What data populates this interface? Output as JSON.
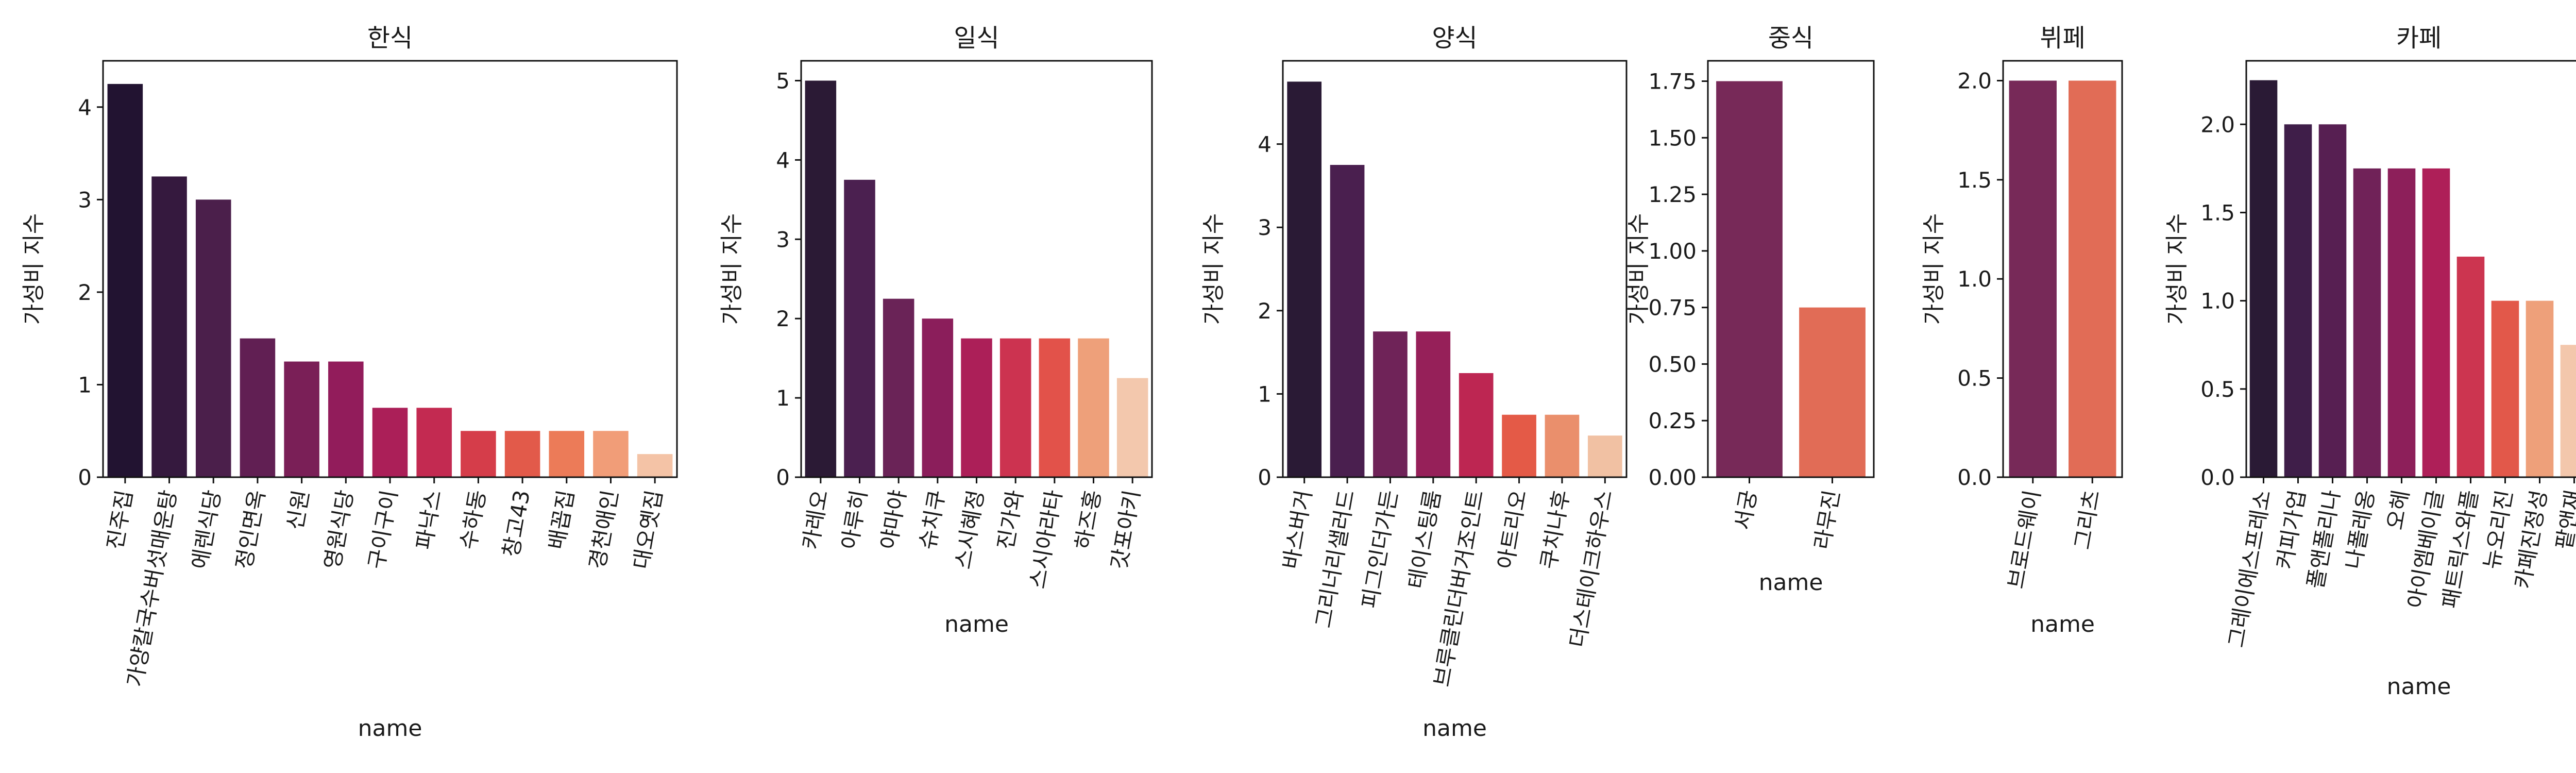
{
  "chart_data": [
    {
      "type": "bar",
      "title": "한식",
      "xlabel": "name",
      "ylabel": "가성비 지수",
      "categories": [
        "진주집",
        "가양칼국수버섯매운탕",
        "에렌식당",
        "정인면옥",
        "신원",
        "영원식당",
        "구이구이",
        "파낙스",
        "수하동",
        "창고43",
        "배꼽집",
        "경천애인",
        "대오옛집"
      ],
      "values": [
        4.25,
        3.25,
        3.0,
        1.5,
        1.25,
        1.25,
        0.75,
        0.75,
        0.5,
        0.5,
        0.5,
        0.5,
        0.25
      ],
      "ylim": [
        0,
        4.5
      ],
      "yticks": [
        0,
        1,
        2,
        3,
        4
      ],
      "ytick_labels": [
        "0",
        "1",
        "2",
        "3",
        "4"
      ],
      "colors": [
        "#221331",
        "#35193e",
        "#4b1f4b",
        "#611f53",
        "#7a1f57",
        "#921c5b",
        "#ab1f58",
        "#c32a51",
        "#d53d4a",
        "#e25a4a",
        "#ec7b58",
        "#f19d78",
        "#f4c3a6"
      ]
    },
    {
      "type": "bar",
      "title": "일식",
      "xlabel": "name",
      "ylabel": "가성비 지수",
      "categories": [
        "카레오",
        "아루히",
        "야마야",
        "슈치쿠",
        "스시혜정",
        "진가와",
        "스시아라타",
        "하즈홍",
        "갓포아키"
      ],
      "values": [
        5.0,
        3.75,
        2.25,
        2.0,
        1.75,
        1.75,
        1.75,
        1.75,
        1.25
      ],
      "ylim": [
        0,
        5.25
      ],
      "yticks": [
        0,
        1,
        2,
        3,
        4,
        5
      ],
      "ytick_labels": [
        "0",
        "1",
        "2",
        "3",
        "4",
        "5"
      ],
      "colors": [
        "#2b1a35",
        "#4b2050",
        "#6a2357",
        "#8b1e5b",
        "#ac1f58",
        "#cc3350",
        "#e2524a",
        "#eea07a",
        "#f3c8ad"
      ]
    },
    {
      "type": "bar",
      "title": "양식",
      "xlabel": "name",
      "ylabel": "가성비 지수",
      "categories": [
        "바스버거",
        "그리너리샐러드",
        "피그인더가든",
        "테이스팅룸",
        "브루클린더버거조인트",
        "아트리오",
        "쿠치나후",
        "더스테이크하우스"
      ],
      "values": [
        4.75,
        3.75,
        1.75,
        1.75,
        1.25,
        0.75,
        0.75,
        0.5
      ],
      "ylim": [
        0,
        5.0
      ],
      "yticks": [
        0,
        1,
        2,
        3,
        4
      ],
      "ytick_labels": [
        "0",
        "1",
        "2",
        "3",
        "4"
      ],
      "colors": [
        "#2a1a35",
        "#4a1f4f",
        "#6f2358",
        "#962059",
        "#bd2652",
        "#e45a47",
        "#ea8f6c",
        "#f1c1a3"
      ]
    },
    {
      "type": "bar",
      "title": "중식",
      "xlabel": "name",
      "ylabel": "가성비 지수",
      "categories": [
        "서궁",
        "라무진"
      ],
      "values": [
        1.75,
        0.75
      ],
      "ylim": [
        0,
        1.84
      ],
      "yticks": [
        0,
        0.25,
        0.5,
        0.75,
        1.0,
        1.25,
        1.5,
        1.75
      ],
      "ytick_labels": [
        "0.00",
        "0.25",
        "0.50",
        "0.75",
        "1.00",
        "1.25",
        "1.50",
        "1.75"
      ],
      "colors": [
        "#772958",
        "#e16c56"
      ]
    },
    {
      "type": "bar",
      "title": "뷔페",
      "xlabel": "name",
      "ylabel": "가성비 지수",
      "categories": [
        "브로드웨이",
        "그리츠"
      ],
      "values": [
        2.0,
        2.0
      ],
      "ylim": [
        0,
        2.1
      ],
      "yticks": [
        0,
        0.5,
        1.0,
        1.5,
        2.0
      ],
      "ytick_labels": [
        "0.0",
        "0.5",
        "1.0",
        "1.5",
        "2.0"
      ],
      "colors": [
        "#772958",
        "#e16c56"
      ]
    },
    {
      "type": "bar",
      "title": "카페",
      "xlabel": "name",
      "ylabel": "가성비 지수",
      "categories": [
        "그레이에스프레소",
        "커피가업",
        "폴앤폴리나",
        "나폴레옹",
        "오헤",
        "아이엠베이글",
        "패트릭스와플",
        "뉴오리진",
        "카페진정성",
        "팥앤재"
      ],
      "values": [
        2.25,
        2.0,
        2.0,
        1.75,
        1.75,
        1.75,
        1.25,
        1.0,
        1.0,
        0.75
      ],
      "ylim": [
        0,
        2.36
      ],
      "yticks": [
        0,
        0.5,
        1.0,
        1.5,
        2.0
      ],
      "ytick_labels": [
        "0.0",
        "0.5",
        "1.0",
        "1.5",
        "2.0"
      ],
      "colors": [
        "#2a1a35",
        "#3f1e49",
        "#571f52",
        "#702258",
        "#8d1f5a",
        "#ae1f58",
        "#cc3550",
        "#e2584a",
        "#eea07a",
        "#f3c7ac"
      ]
    }
  ]
}
